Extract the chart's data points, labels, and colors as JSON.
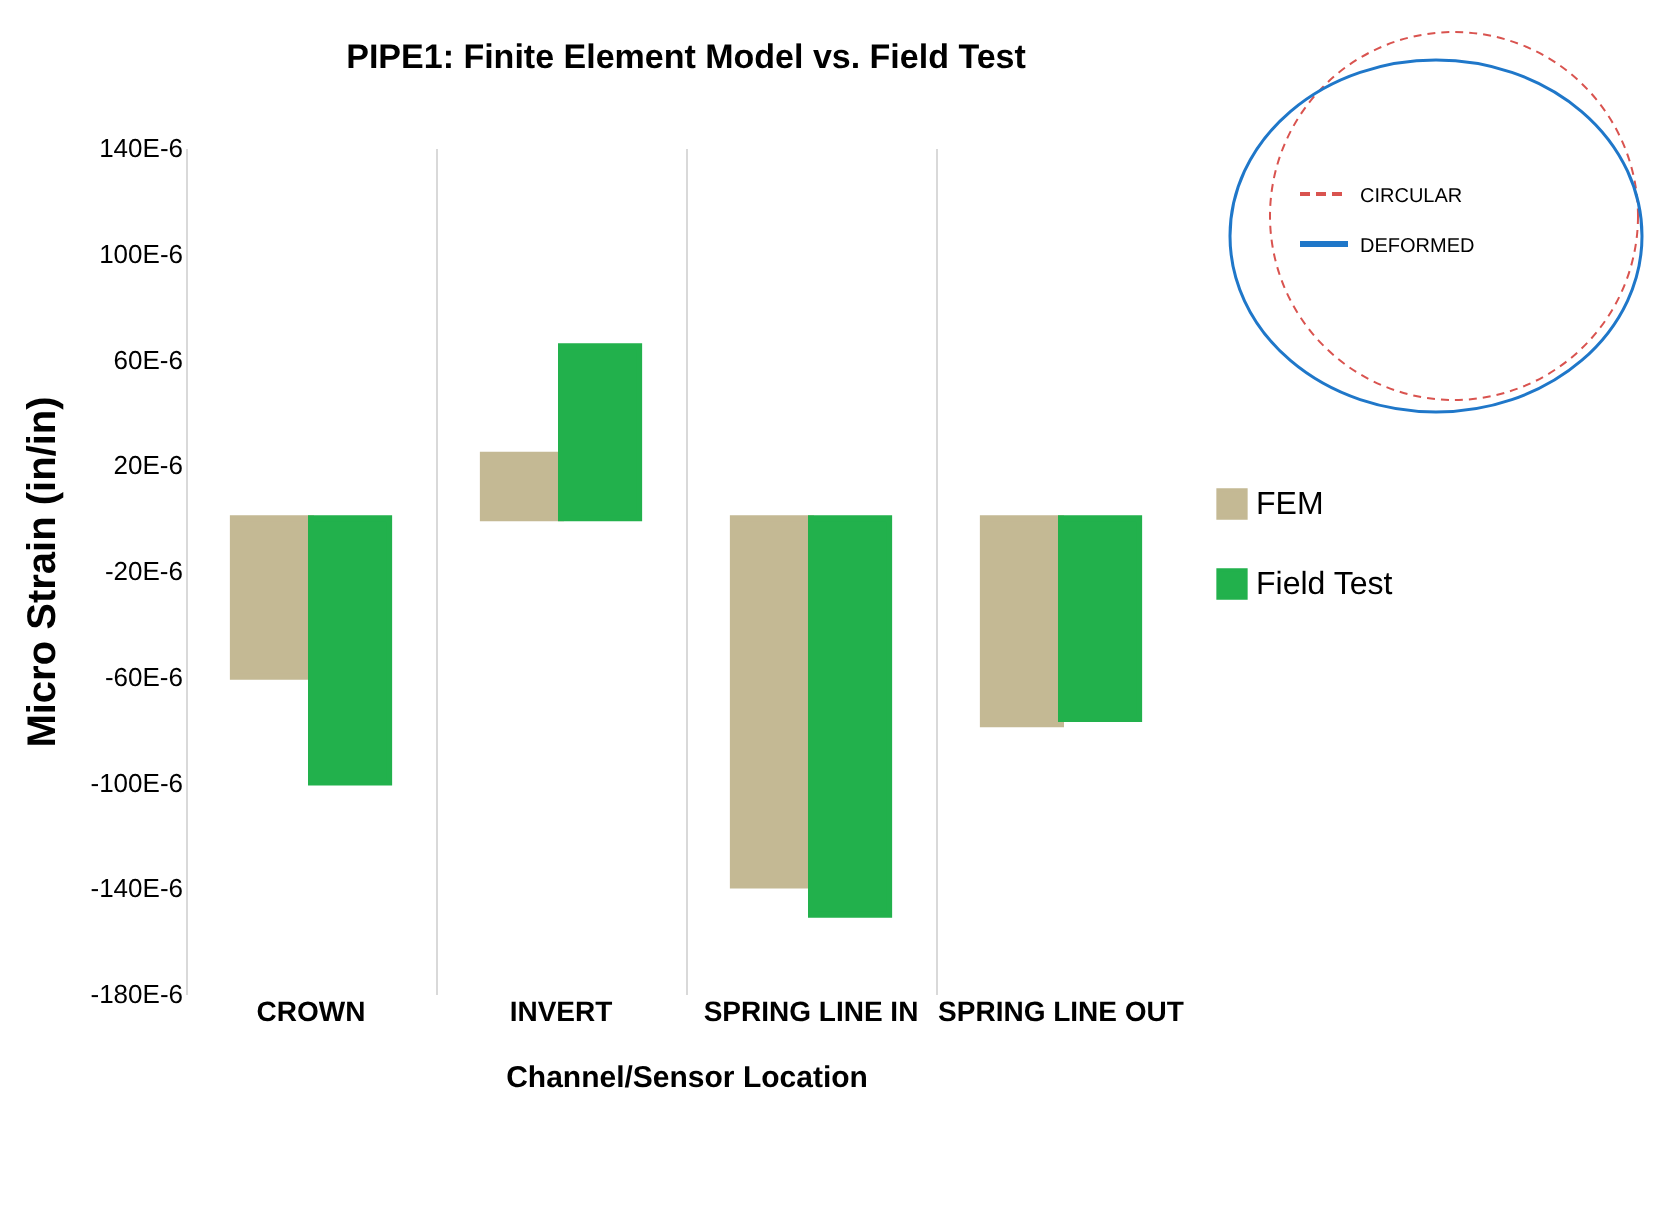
{
  "chart_data": {
    "type": "bar",
    "title": "PIPE1: Finite Element Model vs. Field Test",
    "xlabel": "Channel/Sensor Location",
    "ylabel": "Micro Strain (in/in)",
    "categories": [
      "CROWN",
      "INVERT",
      "SPRING LINE IN",
      "SPRING LINE OUT"
    ],
    "series": [
      {
        "name": "FEM",
        "color": "#c4b994",
        "values": [
          -6e-05,
          2.4e-05,
          -0.000139,
          -7.8e-05
        ]
      },
      {
        "name": "Field Test",
        "color": "#22b14c",
        "values": [
          -0.0001,
          6.5e-05,
          -0.00015,
          -7.6e-05
        ]
      }
    ],
    "ylim": [
      -0.00018,
      0.00014
    ],
    "yticks": [
      {
        "value": -0.00018,
        "label": "-180E-6"
      },
      {
        "value": -0.00014,
        "label": "-140E-6"
      },
      {
        "value": -0.0001,
        "label": "-100E-6"
      },
      {
        "value": -6e-05,
        "label": "-60E-6"
      },
      {
        "value": -2e-05,
        "label": "-20E-6"
      },
      {
        "value": 2e-05,
        "label": "20E-6"
      },
      {
        "value": 6e-05,
        "label": "60E-6"
      },
      {
        "value": 0.0001,
        "label": "100E-6"
      },
      {
        "value": 0.00014,
        "label": "140E-6"
      }
    ],
    "grid": "x",
    "legend": "right",
    "annotations": [
      "CIRCULAR",
      "DEFORMED"
    ]
  }
}
